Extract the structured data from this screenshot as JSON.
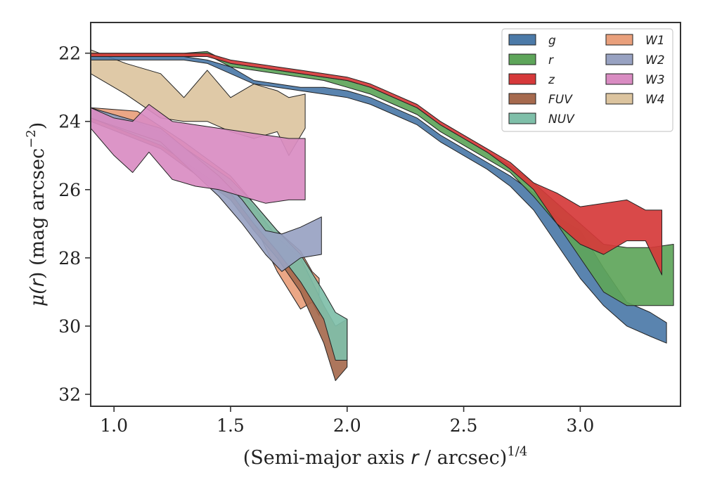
{
  "chart_data": {
    "type": "area",
    "xlabel_prefix": "(Semi-major axis ",
    "xlabel_var": "r",
    "xlabel_suffix": " / arcsec)",
    "xlabel_sup": "1/4",
    "ylabel_prefix": "μ(",
    "ylabel_var": "r",
    "ylabel_suffix": ") (mag arcsec",
    "ylabel_sup": "−2",
    "ylabel_end": ")",
    "xlim": [
      0.9,
      3.43
    ],
    "ylim": [
      32.35,
      21.1
    ],
    "y_inverted": true,
    "grid": false,
    "legend_position": "top-right",
    "xticks": [
      1.0,
      1.5,
      2.0,
      2.5,
      3.0
    ],
    "xtick_labels": [
      "1.0",
      "1.5",
      "2.0",
      "2.5",
      "3.0"
    ],
    "yticks": [
      22,
      24,
      26,
      28,
      30,
      32
    ],
    "ytick_labels": [
      "22",
      "24",
      "26",
      "28",
      "30",
      "32"
    ],
    "series": [
      {
        "name": "W4",
        "color": "#dcc49f",
        "x": [
          0.9,
          1.05,
          1.2,
          1.3,
          1.4,
          1.5,
          1.6,
          1.7,
          1.75,
          1.82
        ],
        "y0": [
          21.9,
          22.3,
          22.6,
          23.3,
          22.5,
          23.3,
          22.9,
          23.1,
          23.3,
          23.2
        ],
        "y1": [
          22.6,
          23.2,
          23.9,
          24.0,
          24.0,
          24.3,
          24.5,
          24.3,
          25.0,
          24.2
        ]
      },
      {
        "name": "W1",
        "color": "#e9a07c",
        "x": [
          0.9,
          1.1,
          1.3,
          1.5,
          1.6,
          1.7,
          1.8,
          1.85,
          1.88
        ],
        "y0": [
          23.6,
          23.7,
          24.6,
          25.6,
          26.4,
          27.2,
          27.8,
          28.4,
          28.6
        ],
        "y1": [
          23.9,
          24.0,
          24.9,
          26.1,
          27.0,
          28.4,
          29.5,
          29.3,
          29.7
        ]
      },
      {
        "name": "FUV",
        "color": "#a66a4e",
        "x": [
          0.9,
          1.2,
          1.5,
          1.6,
          1.7,
          1.8,
          1.9,
          1.95,
          2.0
        ],
        "y0": [
          23.7,
          24.4,
          25.8,
          26.5,
          27.4,
          28.0,
          29.4,
          30.0,
          29.8
        ],
        "y1": [
          24.0,
          24.8,
          26.3,
          27.2,
          28.0,
          29.0,
          30.5,
          31.6,
          31.2
        ]
      },
      {
        "name": "NUV",
        "color": "#7fbfa9",
        "x": [
          0.9,
          1.2,
          1.5,
          1.6,
          1.7,
          1.8,
          1.9,
          1.95,
          2.0
        ],
        "y0": [
          23.6,
          24.3,
          25.7,
          26.4,
          27.2,
          27.9,
          29.0,
          29.6,
          29.8
        ],
        "y1": [
          23.9,
          24.7,
          26.1,
          27.0,
          27.8,
          28.7,
          29.8,
          31.0,
          31.0
        ]
      },
      {
        "name": "W2",
        "color": "#98a2c2",
        "x": [
          0.9,
          1.2,
          1.45,
          1.55,
          1.65,
          1.72,
          1.8,
          1.89
        ],
        "y0": [
          23.6,
          24.2,
          25.6,
          26.3,
          27.2,
          27.3,
          27.1,
          26.8
        ],
        "y1": [
          23.9,
          24.6,
          26.2,
          27.0,
          27.9,
          28.4,
          28.0,
          27.9
        ]
      },
      {
        "name": "W3",
        "color": "#d98cc2",
        "x": [
          0.9,
          1.0,
          1.08,
          1.15,
          1.25,
          1.35,
          1.45,
          1.55,
          1.65,
          1.75,
          1.82
        ],
        "y0": [
          23.6,
          23.9,
          24.0,
          23.5,
          24.0,
          24.1,
          24.2,
          24.3,
          24.4,
          24.5,
          24.5
        ],
        "y1": [
          24.2,
          25.0,
          25.5,
          24.9,
          25.7,
          25.9,
          26.0,
          26.2,
          26.4,
          26.3,
          26.3
        ]
      },
      {
        "name": "g",
        "color": "#4c7aa8",
        "x": [
          0.9,
          1.1,
          1.3,
          1.4,
          1.5,
          1.6,
          1.7,
          1.8,
          1.9,
          2.0,
          2.1,
          2.2,
          2.3,
          2.4,
          2.5,
          2.6,
          2.7,
          2.8,
          2.9,
          3.0,
          3.1,
          3.2,
          3.3,
          3.37
        ],
        "y0": [
          22.1,
          22.1,
          22.1,
          22.2,
          22.4,
          22.8,
          22.9,
          23.0,
          23.0,
          23.1,
          23.3,
          23.6,
          23.9,
          24.4,
          24.8,
          25.2,
          25.6,
          26.1,
          26.8,
          27.2,
          28.3,
          29.3,
          29.6,
          29.9
        ],
        "y1": [
          22.2,
          22.2,
          22.2,
          22.3,
          22.6,
          22.9,
          23.0,
          23.1,
          23.2,
          23.3,
          23.5,
          23.8,
          24.1,
          24.6,
          25.0,
          25.4,
          25.9,
          26.6,
          27.6,
          28.6,
          29.4,
          30.0,
          30.3,
          30.5
        ]
      },
      {
        "name": "r",
        "color": "#5ea55a",
        "x": [
          0.9,
          1.1,
          1.3,
          1.4,
          1.5,
          1.6,
          1.7,
          1.8,
          1.9,
          2.0,
          2.1,
          2.2,
          2.3,
          2.4,
          2.5,
          2.6,
          2.7,
          2.8,
          2.9,
          3.0,
          3.1,
          3.2,
          3.3,
          3.4
        ],
        "y0": [
          22.0,
          22.0,
          22.0,
          21.95,
          22.3,
          22.4,
          22.5,
          22.6,
          22.7,
          22.8,
          23.0,
          23.3,
          23.6,
          24.1,
          24.5,
          24.9,
          25.3,
          25.8,
          26.4,
          27.0,
          27.6,
          27.7,
          27.7,
          27.6
        ],
        "y1": [
          22.1,
          22.1,
          22.1,
          22.05,
          22.4,
          22.5,
          22.6,
          22.7,
          22.8,
          23.0,
          23.2,
          23.5,
          23.8,
          24.3,
          24.7,
          25.1,
          25.5,
          26.2,
          27.0,
          28.0,
          29.0,
          29.4,
          29.4,
          29.4
        ]
      },
      {
        "name": "z",
        "color": "#d6393a",
        "x": [
          0.9,
          1.1,
          1.3,
          1.4,
          1.5,
          1.6,
          1.7,
          1.8,
          1.9,
          2.0,
          2.1,
          2.2,
          2.3,
          2.4,
          2.5,
          2.6,
          2.7,
          2.8,
          2.9,
          3.0,
          3.1,
          3.2,
          3.28,
          3.35
        ],
        "y0": [
          22.0,
          22.0,
          22.0,
          22.0,
          22.2,
          22.3,
          22.4,
          22.5,
          22.6,
          22.7,
          22.9,
          23.2,
          23.5,
          24.0,
          24.4,
          24.8,
          25.2,
          25.8,
          26.1,
          26.5,
          26.4,
          26.3,
          26.6,
          26.6
        ],
        "y1": [
          22.1,
          22.1,
          22.1,
          22.1,
          22.3,
          22.4,
          22.5,
          22.6,
          22.7,
          22.8,
          23.0,
          23.3,
          23.6,
          24.1,
          24.5,
          24.9,
          25.4,
          26.0,
          27.0,
          27.6,
          27.9,
          27.5,
          27.5,
          28.5
        ]
      }
    ],
    "legend_order": [
      "g",
      "r",
      "z",
      "FUV",
      "NUV",
      "W1",
      "W2",
      "W3",
      "W4"
    ]
  }
}
